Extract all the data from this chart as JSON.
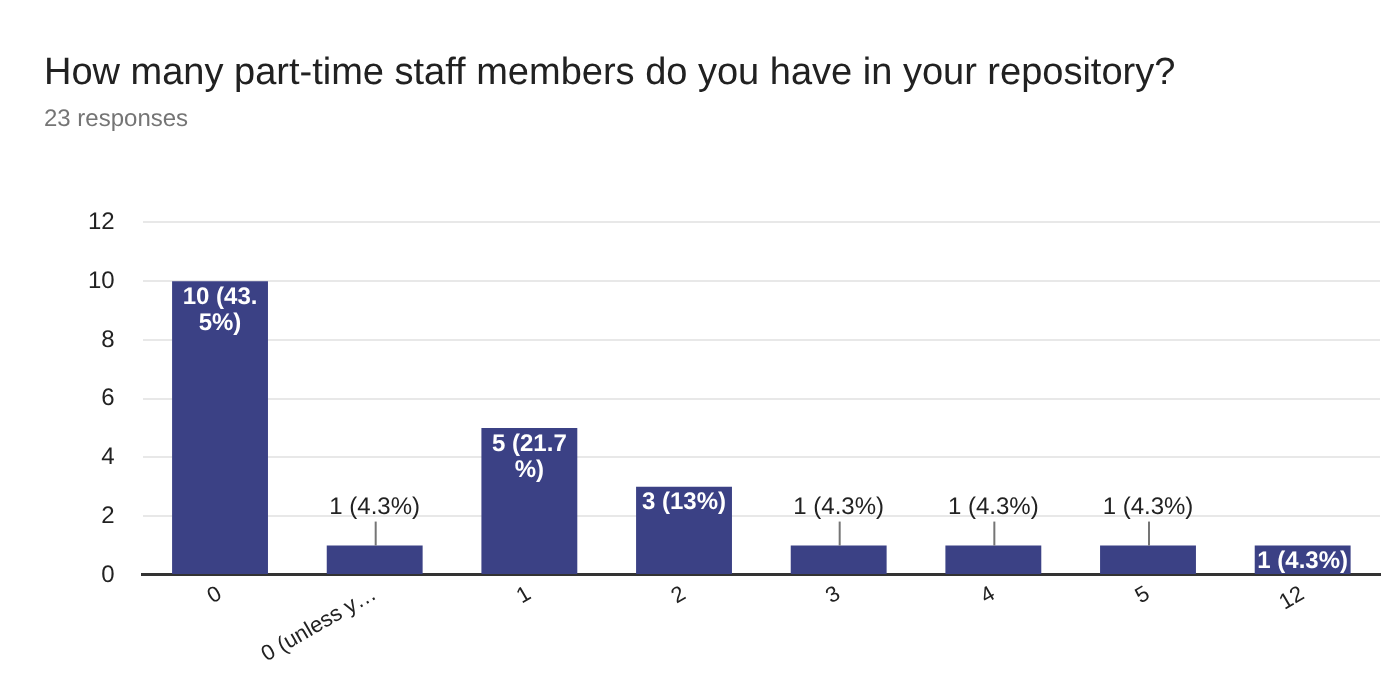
{
  "chart_data": {
    "type": "bar",
    "title": "How many part-time staff members do you have in your repository?",
    "subtitle": "23 responses",
    "categories": [
      "0",
      "0 (unless y…",
      "1",
      "2",
      "3",
      "4",
      "5",
      "12"
    ],
    "values": [
      10,
      1,
      5,
      3,
      1,
      1,
      1,
      1
    ],
    "value_labels": [
      "10 (43.5%)",
      "1 (4.3%)",
      "5 (21.7%)",
      "3 (13%)",
      "1 (4.3%)",
      "1 (4.3%)",
      "1 (4.3%)",
      "1 (4.3%)"
    ],
    "color": "#3b4185",
    "ylim": [
      0,
      12
    ],
    "yticks": [
      0,
      2,
      4,
      6,
      8,
      10,
      12
    ],
    "grid": "y",
    "legend": false
  }
}
